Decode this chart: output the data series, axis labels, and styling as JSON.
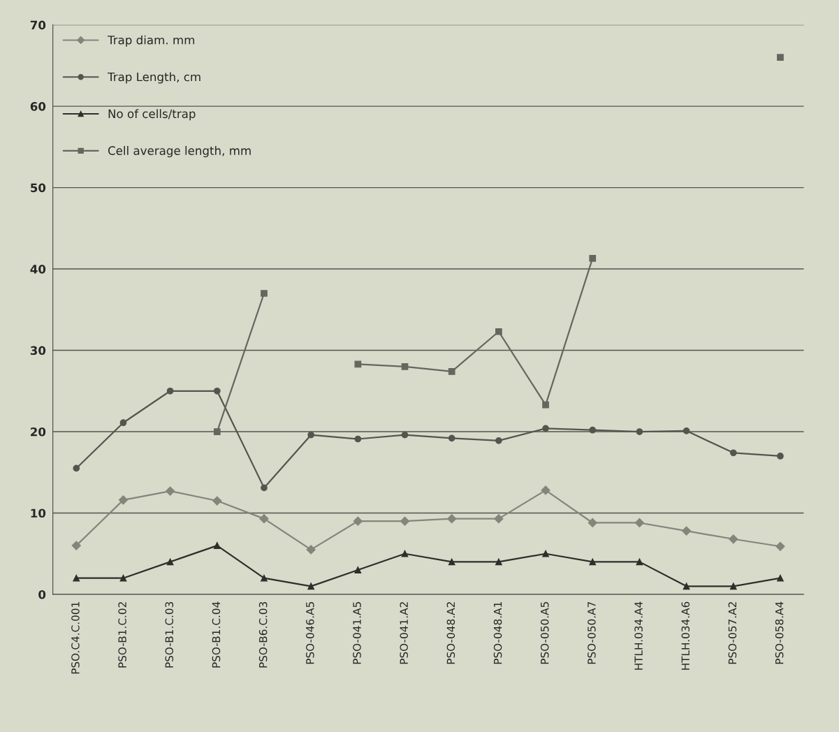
{
  "chart_data": {
    "type": "line",
    "categories": [
      "PSO.C4.C.001",
      "PSO-B1.C.02",
      "PSO-B1.C.03",
      "PSO-B1.C.04",
      "PSO-B6.C.03",
      "PSO-046.A5",
      "PSO-041.A5",
      "PSO-041.A2",
      "PSO-048.A2",
      "PSO-048.A1",
      "PSO-050.A5",
      "PSO-050.A7",
      "HTLH.034.A4",
      "HTLH.034.A6",
      "PSO-057.A2",
      "PSO-058.A4"
    ],
    "series": [
      {
        "name": "Trap diam. mm",
        "color": "#85857c",
        "marker": "diamond",
        "values": [
          6.0,
          11.6,
          12.7,
          11.5,
          9.3,
          5.5,
          9.0,
          9.0,
          9.3,
          9.3,
          12.8,
          8.8,
          8.8,
          7.8,
          6.8,
          5.9
        ]
      },
      {
        "name": "Trap Length, cm",
        "color": "#55554f",
        "marker": "circle",
        "values": [
          15.5,
          21.1,
          25.0,
          25.0,
          13.1,
          19.6,
          19.1,
          19.6,
          19.2,
          18.9,
          20.4,
          20.2,
          20.0,
          20.1,
          17.4,
          17.0
        ]
      },
      {
        "name": "No of cells/trap",
        "color": "#2e2e2b",
        "marker": "triangle",
        "values": [
          2,
          2,
          4,
          6,
          2,
          1,
          3,
          5,
          4,
          4,
          5,
          4,
          4,
          1,
          1,
          2
        ]
      },
      {
        "name": "Cell average length, mm",
        "color": "#66665f",
        "marker": "square",
        "values": [
          null,
          null,
          null,
          20.0,
          37.0,
          null,
          28.3,
          28.0,
          27.4,
          32.3,
          23.3,
          41.3,
          null,
          null,
          null,
          66.0
        ]
      }
    ],
    "ylim": [
      0,
      70
    ],
    "yticks": [
      0,
      10,
      20,
      30,
      40,
      50,
      60,
      70
    ],
    "grid": "y",
    "legend": "top left",
    "line_style": "solid"
  }
}
